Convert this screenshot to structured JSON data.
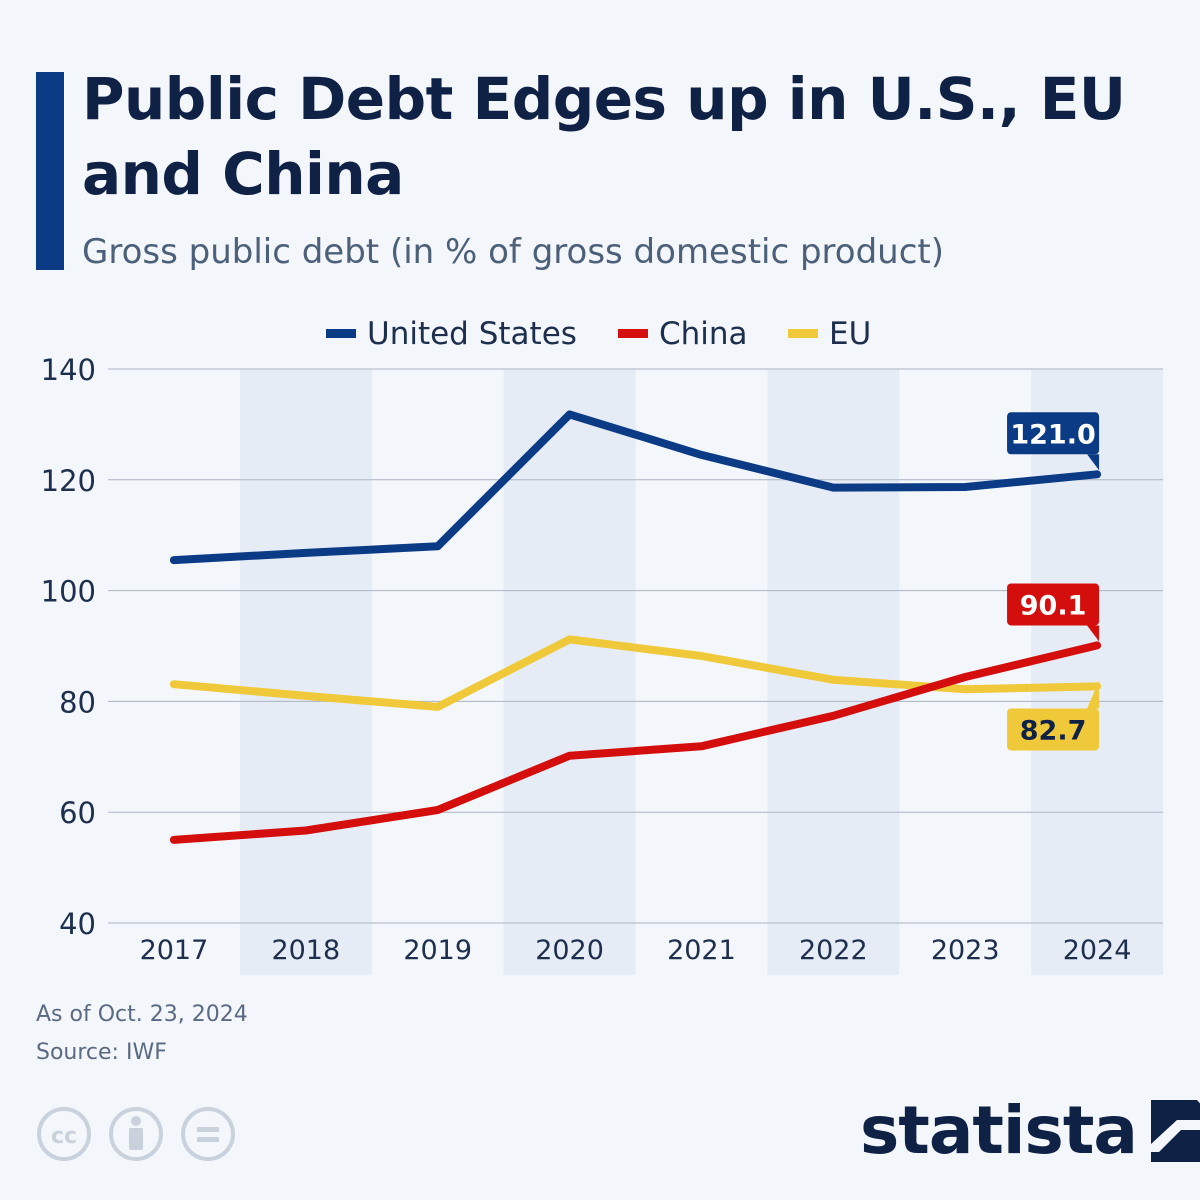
{
  "header": {
    "title": "Public Debt Edges up in U.S., EU and China",
    "subtitle": "Gross public debt (in % of gross domestic product)"
  },
  "colors": {
    "accent_bar": "#0c3b85",
    "united_states": "#0c3b85",
    "china": "#d40d0d",
    "eu": "#f0c93a",
    "band": "#e6ecf5",
    "grid": "#aab4c3"
  },
  "chart_data": {
    "type": "line",
    "title": "Public Debt Edges up in U.S., EU and China",
    "ylabel": "Gross public debt (in % of gross domestic product)",
    "xlabel": "",
    "categories": [
      "2017",
      "2018",
      "2019",
      "2020",
      "2021",
      "2022",
      "2023",
      "2024"
    ],
    "ylim": [
      40,
      140
    ],
    "yticks": [
      40,
      60,
      80,
      100,
      120,
      140
    ],
    "grid": true,
    "legend_position": "top-center",
    "series": [
      {
        "name": "United States",
        "color": "#0c3b85",
        "values": [
          105.5,
          106.8,
          108.0,
          131.8,
          124.5,
          118.6,
          118.7,
          121.0
        ],
        "end_label": "121.0"
      },
      {
        "name": "China",
        "color": "#d40d0d",
        "values": [
          55.0,
          56.7,
          60.4,
          70.2,
          71.9,
          77.4,
          84.4,
          90.1
        ],
        "end_label": "90.1"
      },
      {
        "name": "EU",
        "color": "#f0c93a",
        "values": [
          83.1,
          81.0,
          79.0,
          91.2,
          88.2,
          83.9,
          82.2,
          82.7
        ],
        "end_label": "82.7"
      }
    ]
  },
  "footer": {
    "date": "As of Oct. 23, 2024",
    "source": "Source: IWF",
    "brand": "statista",
    "license_icons": [
      "cc-icon",
      "attribution-icon",
      "no-derivatives-icon"
    ]
  }
}
